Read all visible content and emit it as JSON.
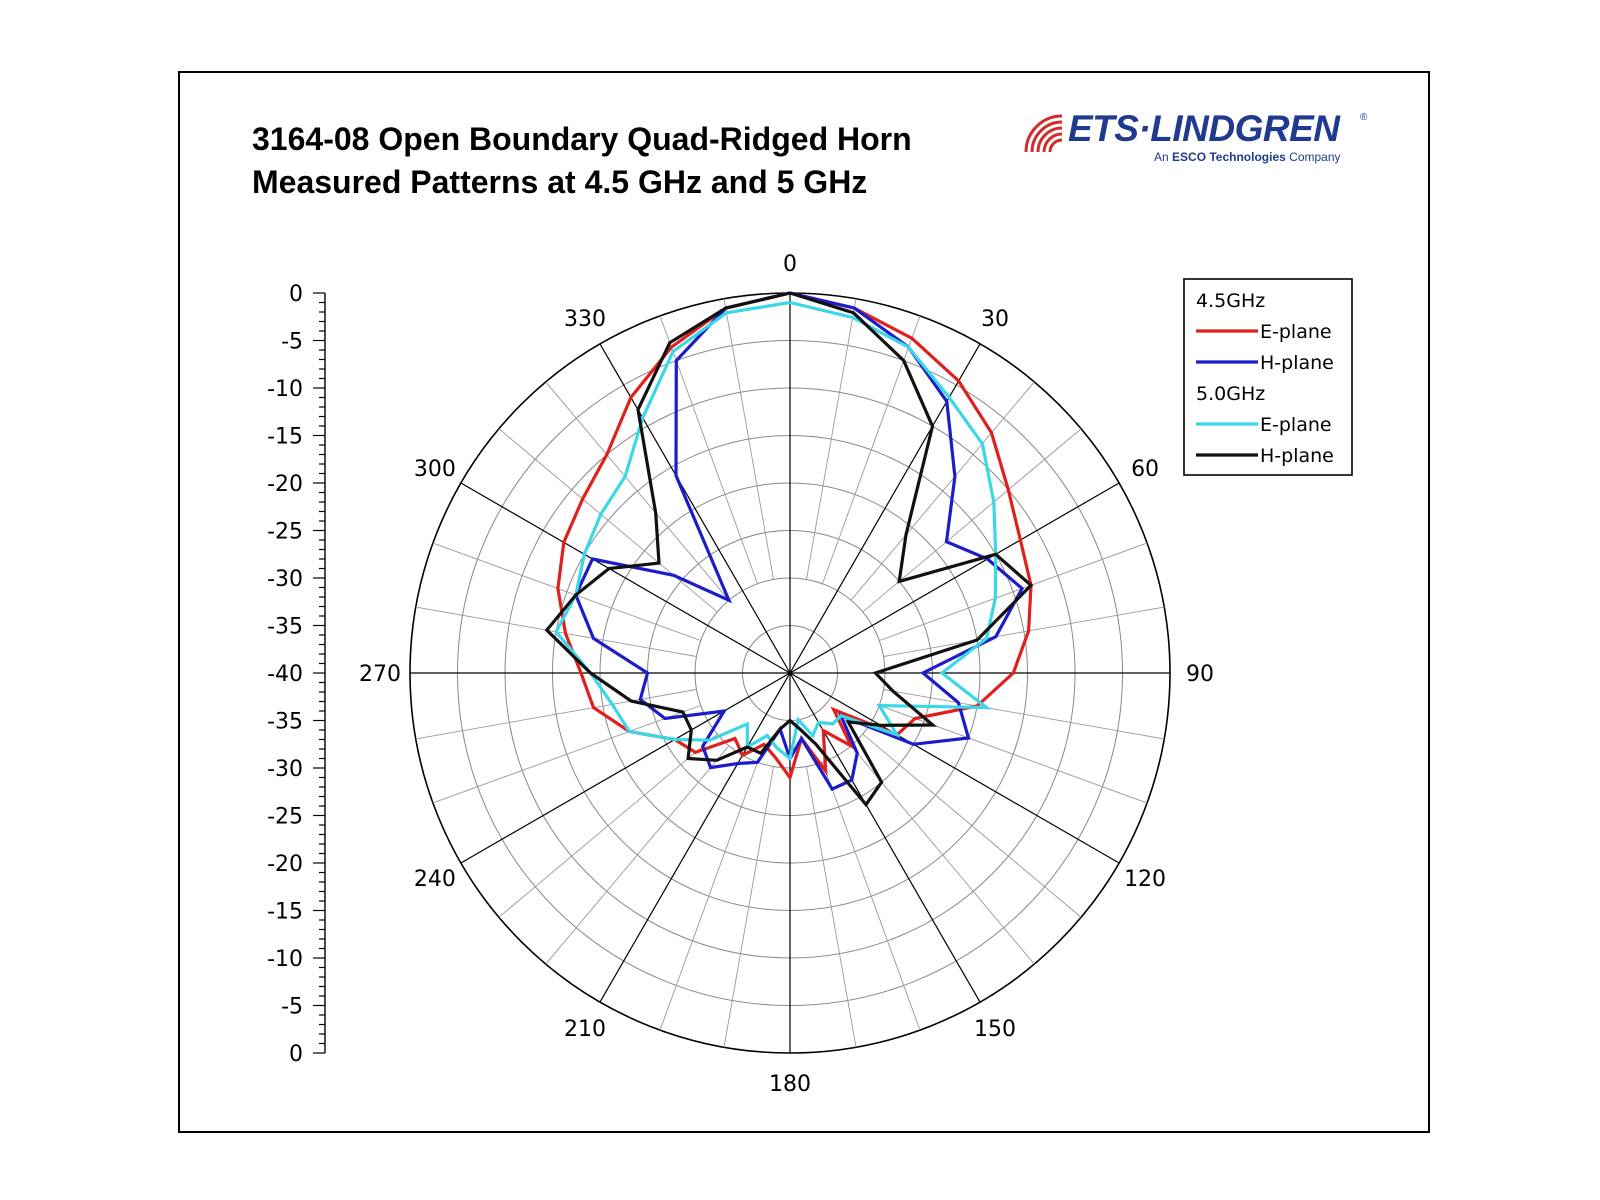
{
  "header": {
    "title_line1": "3164-08 Open Boundary Quad-Ridged Horn",
    "title_line2": "Measured Patterns at 4.5 GHz and 5 GHz"
  },
  "logo": {
    "brand": "ETS·LINDGREN",
    "tagline_prefix": "An ",
    "tagline_bold": "ESCO Technologies",
    "tagline_suffix": " Company",
    "registered": "®",
    "color": "#1f3a8f",
    "accent": "#d22b2b"
  },
  "chart_data": {
    "type": "polar",
    "radial_min": -40,
    "radial_max": 0,
    "radial_ring_step": 5,
    "angle_spoke_step": 30,
    "angle_ticks": [
      "0",
      "30",
      "60",
      "90",
      "120",
      "150",
      "180",
      "210",
      "240",
      "270",
      "300",
      "330"
    ],
    "radial_ticks": [
      "0",
      "-5",
      "-10",
      "-15",
      "-20",
      "-25",
      "-30",
      "-35",
      "-40",
      "-35",
      "-30",
      "-25",
      "-20",
      "-15",
      "-10",
      "-5",
      "0"
    ],
    "legend": {
      "group1": "4.5GHz",
      "group2": "5.0GHz",
      "items": [
        {
          "group": "4.5GHz",
          "label": "E-plane",
          "color": "#e0201c"
        },
        {
          "group": "4.5GHz",
          "label": "H-plane",
          "color": "#1c1cc8"
        },
        {
          "group": "5.0GHz",
          "label": "E-plane",
          "color": "#3ad8e6"
        },
        {
          "group": "5.0GHz",
          "label": "H-plane",
          "color": "#111111"
        }
      ]
    },
    "series": [
      {
        "name": "4.5GHz E-plane",
        "color": "#e0201c",
        "angles": [
          0,
          10,
          20,
          30,
          40,
          50,
          60,
          70,
          80,
          90,
          100,
          110,
          120,
          130,
          140,
          150,
          160,
          170,
          180,
          190,
          200,
          210,
          220,
          230,
          240,
          250,
          260,
          270,
          280,
          290,
          300,
          310,
          320,
          330,
          340,
          350
        ],
        "values": [
          0,
          -1,
          -2.5,
          -4.5,
          -7,
          -10,
          -12,
          -13,
          -14.5,
          -16.5,
          -20,
          -26,
          -27,
          -34,
          -30,
          -33,
          -29,
          -33,
          -29,
          -31,
          -32,
          -30,
          -31,
          -27,
          -26,
          -22,
          -19,
          -18,
          -16,
          -14,
          -12.5,
          -11.5,
          -10,
          -6.5,
          -3.5,
          -1
        ]
      },
      {
        "name": "4.5GHz H-plane",
        "color": "#1c1cc8",
        "angles": [
          0,
          10,
          20,
          30,
          40,
          50,
          60,
          70,
          80,
          90,
          100,
          110,
          120,
          130,
          140,
          150,
          160,
          170,
          180,
          190,
          200,
          210,
          220,
          230,
          240,
          250,
          260,
          270,
          280,
          290,
          300,
          310,
          320,
          330,
          340,
          350
        ],
        "values": [
          0,
          -1,
          -3.5,
          -7,
          -13,
          -18.5,
          -16,
          -14,
          -18,
          -26,
          -22,
          -20,
          -25,
          -33,
          -29,
          -27,
          -27,
          -33,
          -31,
          -34,
          -30,
          -29,
          -27,
          -28,
          -32,
          -26,
          -24,
          -25,
          -19,
          -16,
          -16,
          -24,
          -30,
          -16,
          -5,
          -1
        ]
      },
      {
        "name": "5.0GHz E-plane",
        "color": "#3ad8e6",
        "angles": [
          0,
          10,
          20,
          30,
          40,
          50,
          60,
          70,
          80,
          90,
          100,
          110,
          120,
          130,
          140,
          150,
          160,
          170,
          180,
          190,
          200,
          210,
          220,
          230,
          240,
          250,
          260,
          270,
          280,
          290,
          300,
          310,
          320,
          330,
          340,
          350
        ],
        "values": [
          -1,
          -2,
          -3.5,
          -6.5,
          -8.5,
          -12,
          -15,
          -17,
          -19,
          -24,
          -19,
          -30,
          -27,
          -33,
          -33,
          -34,
          -33,
          -35,
          -31,
          -32,
          -33,
          -31,
          -33,
          -29,
          -26,
          -22,
          -21,
          -19,
          -15,
          -16,
          -15,
          -14,
          -13,
          -9,
          -4,
          -1.5
        ]
      },
      {
        "name": "5.0GHz H-plane",
        "color": "#111111",
        "angles": [
          0,
          10,
          20,
          30,
          40,
          50,
          60,
          70,
          80,
          90,
          100,
          110,
          120,
          130,
          140,
          150,
          160,
          170,
          180,
          190,
          200,
          210,
          220,
          230,
          240,
          250,
          260,
          270,
          280,
          290,
          300,
          310,
          320,
          330,
          340,
          350
        ],
        "values": [
          0,
          -1.5,
          -5,
          -10,
          -21,
          -25,
          -15,
          -13,
          -20,
          -31,
          -29,
          -24,
          -29,
          -32,
          -25,
          -24,
          -32,
          -34,
          -35,
          -34,
          -31,
          -31,
          -28,
          -26,
          -28,
          -28,
          -23,
          -19,
          -14,
          -16,
          -18,
          -22,
          -18,
          -8,
          -3,
          -1
        ]
      }
    ]
  }
}
